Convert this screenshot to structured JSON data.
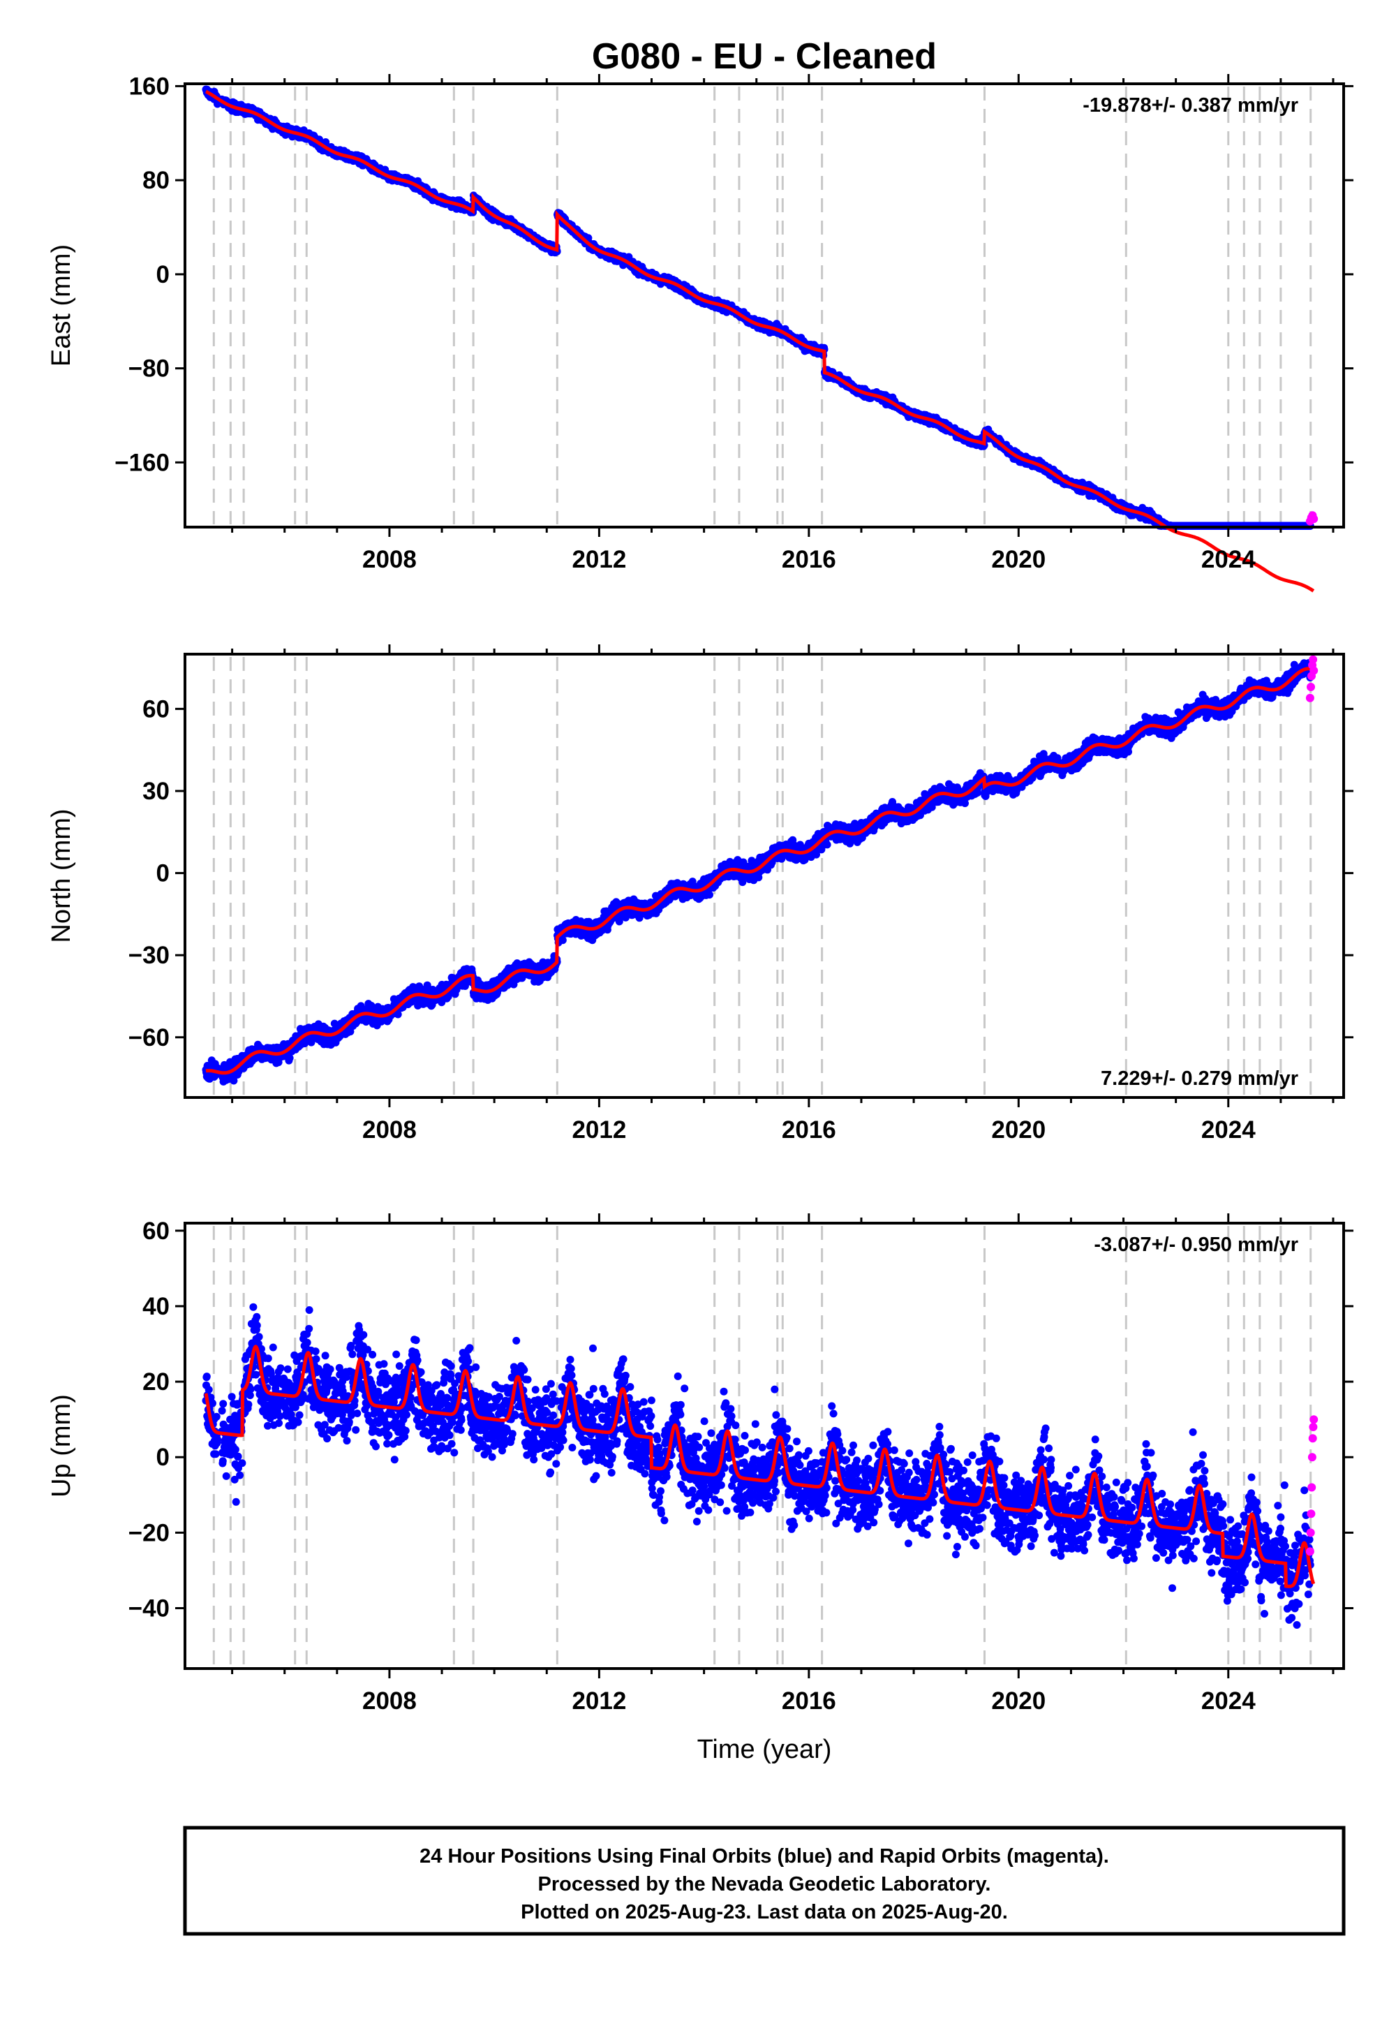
{
  "title": "G080  - EU - Cleaned",
  "colors": {
    "final": "#0000ff",
    "rapid": "#ff00ff",
    "model": "#ff0000",
    "event_line": "#c8c8c8"
  },
  "chart_data": [
    {
      "type": "scatter",
      "ylabel": "East (mm)",
      "xlabel": "",
      "xlim": [
        2004.1,
        2026.2
      ],
      "ylim": [
        -215,
        162
      ],
      "yticks": [
        160,
        80,
        0,
        -80,
        -160
      ],
      "ytick_labels": [
        "160",
        "80",
        "0",
        "−80",
        "−160"
      ],
      "xticks": [
        2008,
        2012,
        2016,
        2020,
        2024
      ],
      "xtick_labels": [
        "2008",
        "2012",
        "2016",
        "2020",
        "2024"
      ],
      "rate_label": "-19.878+/- 0.387 mm/yr",
      "rate_position": "top-right",
      "trend": {
        "start": 2004.5,
        "end": 2025.63,
        "y0": 154,
        "slope": -19.878
      },
      "noise": 2.5,
      "offsets": [
        {
          "t": 2009.6,
          "dy": 12
        },
        {
          "t": 2011.2,
          "dy": 30
        },
        {
          "t": 2016.3,
          "dy": -18
        },
        {
          "t": 2019.35,
          "dy": 10
        }
      ],
      "postseismic": [
        {
          "t": 2009.6,
          "amp": -14,
          "tau": 0.8
        },
        {
          "t": 2011.2,
          "amp": -14,
          "tau": 0.4
        },
        {
          "t": 2019.35,
          "amp": -10,
          "tau": 0.7
        }
      ],
      "seasonal_amp": 1.5,
      "rapid": {
        "start": 2025.56,
        "end": 2025.63,
        "values": [
          -210,
          -207,
          -205,
          -208
        ]
      }
    },
    {
      "type": "scatter",
      "ylabel": "North (mm)",
      "xlabel": "",
      "xlim": [
        2004.1,
        2026.2
      ],
      "ylim": [
        -82,
        80
      ],
      "yticks": [
        60,
        30,
        0,
        -30,
        -60
      ],
      "ytick_labels": [
        "60",
        "30",
        "0",
        "−30",
        "−60"
      ],
      "xticks": [
        2008,
        2012,
        2016,
        2020,
        2024
      ],
      "xtick_labels": [
        "2008",
        "2012",
        "2016",
        "2020",
        "2024"
      ],
      "rate_label": "7.229+/- 0.279 mm/yr",
      "rate_position": "bottom-right",
      "trend": {
        "start": 2004.5,
        "end": 2025.63,
        "y0": -74,
        "slope": 6.95
      },
      "noise": 2.2,
      "offsets": [
        {
          "t": 2009.6,
          "dy": -5
        },
        {
          "t": 2011.2,
          "dy": 9
        },
        {
          "t": 2019.35,
          "dy": -3
        }
      ],
      "postseismic": [],
      "seasonal_amp": 1.8,
      "rapid": {
        "start": 2025.56,
        "end": 2025.63,
        "values": [
          64,
          68,
          72,
          76,
          78,
          74
        ]
      }
    },
    {
      "type": "scatter",
      "ylabel": "Up (mm)",
      "xlabel": "Time (year)",
      "xlim": [
        2004.1,
        2026.2
      ],
      "ylim": [
        -56,
        62
      ],
      "yticks": [
        60,
        40,
        20,
        0,
        -20,
        -40
      ],
      "ytick_labels": [
        "60",
        "40",
        "20",
        "0",
        "−20",
        "−40"
      ],
      "xticks": [
        2008,
        2012,
        2016,
        2020,
        2024
      ],
      "xtick_labels": [
        "2008",
        "2012",
        "2016",
        "2020",
        "2024"
      ],
      "rate_label": "-3.087+/- 0.950 mm/yr",
      "rate_position": "top-right",
      "trend": {
        "start": 2004.5,
        "end": 2025.63,
        "y0": 11,
        "slope": -1.6
      },
      "trend_breaks": [
        {
          "t": 2005.2,
          "dy": 12
        },
        {
          "t": 2013.0,
          "dy": -8
        },
        {
          "t": 2023.9,
          "dy": -6
        },
        {
          "t": 2025.1,
          "dy": -6
        }
      ],
      "noise": 7,
      "offsets": [],
      "postseismic": [],
      "seasonal_amp": 6,
      "rapid": {
        "start": 2025.56,
        "end": 2025.63,
        "values": [
          -25,
          -20,
          -15,
          -8,
          0,
          5,
          8,
          10
        ]
      }
    }
  ],
  "event_lines": [
    2004.65,
    2004.97,
    2005.22,
    2006.2,
    2006.42,
    2009.23,
    2009.6,
    2011.2,
    2014.2,
    2014.67,
    2015.4,
    2015.5,
    2016.25,
    2019.35,
    2022.05,
    2024.0,
    2024.3,
    2024.6,
    2025.0,
    2025.57
  ],
  "footer": {
    "line1": "24 Hour Positions Using Final Orbits (blue) and Rapid Orbits (magenta).",
    "line2": "Processed by the Nevada Geodetic Laboratory.",
    "line3": "Plotted on 2025-Aug-23. Last data on 2025-Aug-20."
  }
}
